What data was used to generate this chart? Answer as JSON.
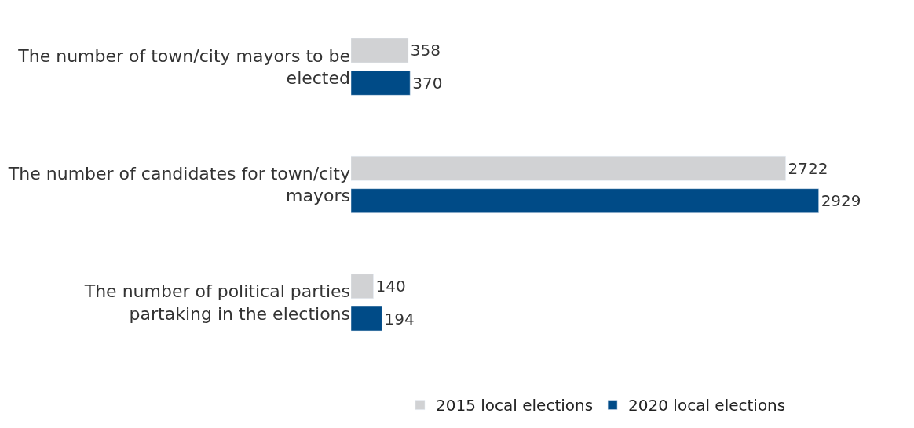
{
  "chart_data": {
    "type": "bar",
    "orientation": "horizontal",
    "categories": [
      "The number of town/city mayors to be elected",
      "The number of candidates for town/city mayors",
      "The number of political parties partaking in the elections"
    ],
    "series": [
      {
        "name": "2015 local elections",
        "color": "#d1d2d4",
        "values": [
          358,
          2722,
          140
        ]
      },
      {
        "name": "2020 local elections",
        "color": "#004b87",
        "values": [
          370,
          2929,
          194
        ]
      }
    ],
    "data_labels": true,
    "legend": "bottom"
  }
}
